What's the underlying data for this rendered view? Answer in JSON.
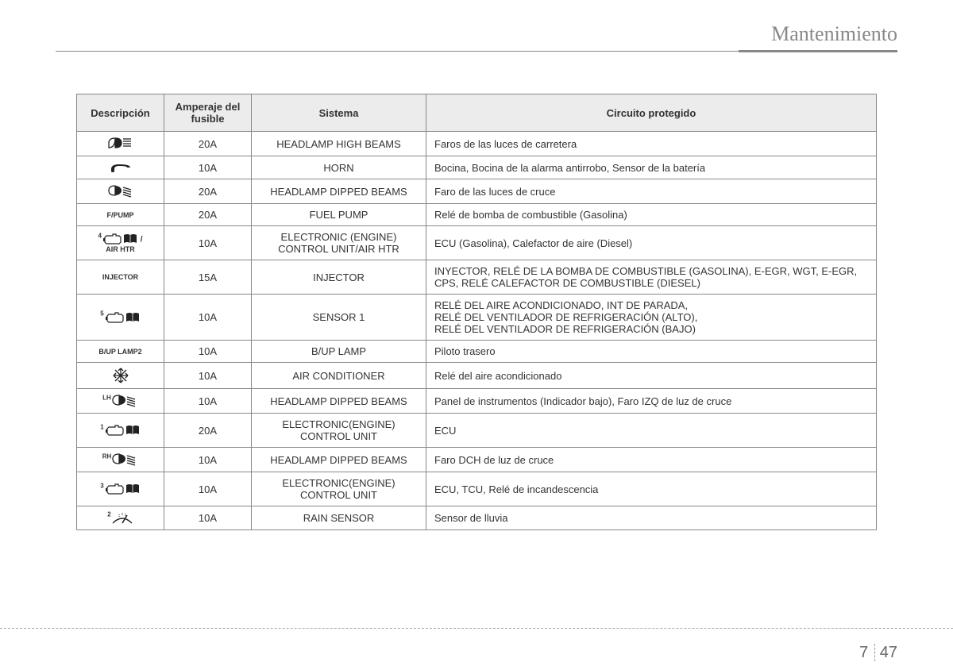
{
  "header": {
    "title": "Mantenimiento"
  },
  "table": {
    "columns": {
      "desc": "Descripción",
      "amp": "Amperaje del fusible",
      "sys": "Sistema",
      "circ": "Circuito protegido"
    },
    "rows": [
      {
        "icon": "high-beam",
        "desc_text": "",
        "amp": "20A",
        "sys": "HEADLAMP HIGH BEAMS",
        "circ": "Faros de las luces de carretera"
      },
      {
        "icon": "horn",
        "desc_text": "",
        "amp": "10A",
        "sys": "HORN",
        "circ": "Bocina, Bocina de la alarma antirrobo, Sensor de la batería"
      },
      {
        "icon": "low-beam",
        "desc_text": "",
        "amp": "20A",
        "sys": "HEADLAMP DIPPED BEAMS",
        "circ": "Faro de las luces de cruce"
      },
      {
        "icon": "text",
        "desc_text": "F/PUMP",
        "amp": "20A",
        "sys": "FUEL PUMP",
        "circ": "Relé de bomba de combustible (Gasolina)"
      },
      {
        "icon": "engine-book",
        "sup": "4",
        "desc_text": "AIR HTR",
        "desc_sep": " / ",
        "amp": "10A",
        "sys": "ELECTRONIC (ENGINE) CONTROL UNIT/AIR HTR",
        "circ": "ECU (Gasolina), Calefactor de aire (Diesel)"
      },
      {
        "icon": "text",
        "desc_text": "INJECTOR",
        "amp": "15A",
        "sys": "INJECTOR",
        "circ": "INYECTOR, RELÉ DE LA BOMBA DE COMBUSTIBLE (GASOLINA), E-EGR, WGT, E-EGR, CPS, RELÉ CALEFACTOR DE COMBUSTIBLE (DIESEL)"
      },
      {
        "icon": "engine-book",
        "sup": "5",
        "desc_text": "",
        "amp": "10A",
        "sys": "SENSOR 1",
        "circ": "RELÉ DEL AIRE ACONDICIONADO, INT DE PARADA,\nRELÉ DEL VENTILADOR DE REFRIGERACIÓN (ALTO),\nRELÉ DEL VENTILADOR DE REFRIGERACIÓN (BAJO)"
      },
      {
        "icon": "text",
        "desc_text": "B/UP LAMP2",
        "amp": "10A",
        "sys": "B/UP LAMP",
        "circ": "Piloto trasero"
      },
      {
        "icon": "snowflake",
        "desc_text": "",
        "amp": "10A",
        "sys": "AIR CONDITIONER",
        "circ": "Relé del aire acondicionado"
      },
      {
        "icon": "low-beam",
        "sup": "LH",
        "desc_text": "",
        "amp": "10A",
        "sys": "HEADLAMP DIPPED BEAMS",
        "circ": "Panel de instrumentos (Indicador bajo), Faro IZQ de luz de cruce"
      },
      {
        "icon": "engine-book",
        "sup": "1",
        "desc_text": "",
        "amp": "20A",
        "sys": "ELECTRONIC(ENGINE) CONTROL UNIT",
        "circ": "ECU"
      },
      {
        "icon": "low-beam",
        "sup": "RH",
        "desc_text": "",
        "amp": "10A",
        "sys": "HEADLAMP DIPPED BEAMS",
        "circ": "Faro DCH de luz de cruce"
      },
      {
        "icon": "engine-book",
        "sup": "3",
        "desc_text": "",
        "amp": "10A",
        "sys": "ELECTRONIC(ENGINE) CONTROL UNIT",
        "circ": "ECU, TCU, Relé de incandescencia"
      },
      {
        "icon": "wiper",
        "sup": "2",
        "desc_text": "",
        "amp": "10A",
        "sys": "RAIN SENSOR",
        "circ": "Sensor de lluvia"
      }
    ]
  },
  "footer": {
    "chapter": "7",
    "page": "47"
  },
  "style": {
    "header_fontsize": 26,
    "header_color": "#888888",
    "th_bg": "#ececec",
    "border_color": "#888888",
    "body_fontsize": 13,
    "icon_color": "#222222"
  }
}
